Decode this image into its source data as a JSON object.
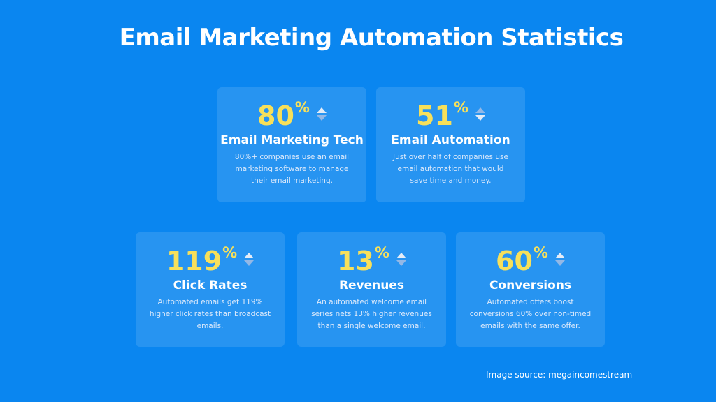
{
  "title": "Email Marketing Automation Statistics",
  "accent_color": "#f7e05a",
  "background_color": "#0a86f0",
  "cards": [
    {
      "value": "80",
      "unit": "%",
      "arrow_icon": "sort-arrows-icon",
      "title": "Email Marketing Tech",
      "description": "80%+ companies use an email marketing software to manage their email marketing."
    },
    {
      "value": "51",
      "unit": "%",
      "arrow_icon": "sort-arrows-icon",
      "title": "Email Automation",
      "description": "Just over half of companies use email automation that would save time and money."
    },
    {
      "value": "119",
      "unit": "%",
      "arrow_icon": "sort-arrows-icon",
      "title": "Click Rates",
      "description": "Automated emails get 119% higher click rates than broadcast emails."
    },
    {
      "value": "13",
      "unit": "%",
      "arrow_icon": "sort-arrows-icon",
      "title": "Revenues",
      "description": "An automated welcome email series nets 13% higher revenues than a single welcome email."
    },
    {
      "value": "60",
      "unit": "%",
      "arrow_icon": "sort-arrows-icon",
      "title": "Conversions",
      "description": "Automated offers boost conversions 60% over non-timed emails with the same offer."
    }
  ],
  "source": "Image source: megaincomestream"
}
